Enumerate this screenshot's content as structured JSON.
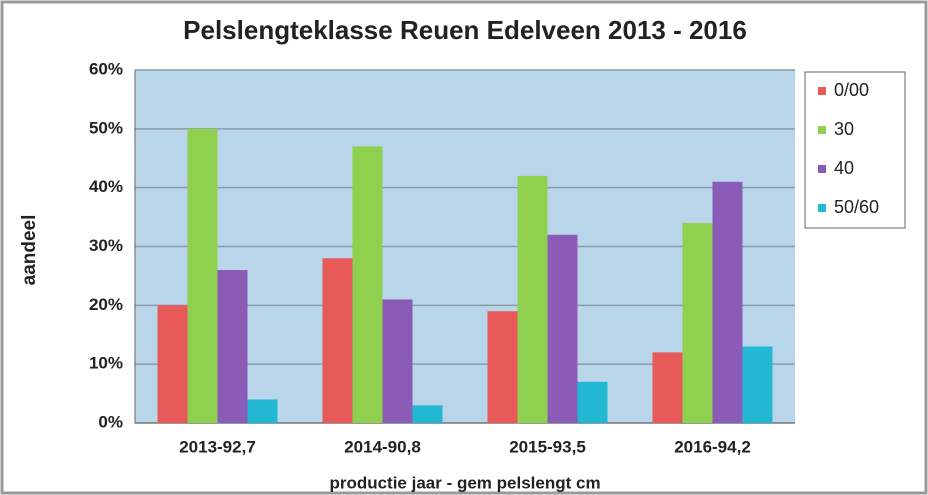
{
  "chart_data": {
    "type": "bar",
    "title": "Pelslengteklasse Reuen Edelveen 2013 - 2016",
    "ylabel": "aandeel",
    "xlabel": "productie jaar - gem pelslengt cm",
    "categories": [
      "2013-92,7",
      "2014-90,8",
      "2015-93,5",
      "2016-94,2"
    ],
    "series": [
      {
        "name": "0/00",
        "color": "#e8595a",
        "values": [
          20,
          28,
          19,
          12
        ]
      },
      {
        "name": "30",
        "color": "#8fd14f",
        "values": [
          50,
          47,
          42,
          34
        ]
      },
      {
        "name": "40",
        "color": "#8a5cb8",
        "values": [
          26,
          21,
          32,
          41
        ]
      },
      {
        "name": "50/60",
        "color": "#22b8d4",
        "values": [
          4,
          3,
          7,
          13
        ]
      }
    ],
    "ylim": [
      0,
      60
    ],
    "yticks": [
      {
        "value": 0,
        "label": "0%"
      },
      {
        "value": 10,
        "label": "10%"
      },
      {
        "value": 20,
        "label": "20%"
      },
      {
        "value": 30,
        "label": "30%"
      },
      {
        "value": 40,
        "label": "40%"
      },
      {
        "value": 50,
        "label": "50%"
      },
      {
        "value": 60,
        "label": "60%"
      }
    ],
    "grid": true,
    "legend": "right"
  }
}
